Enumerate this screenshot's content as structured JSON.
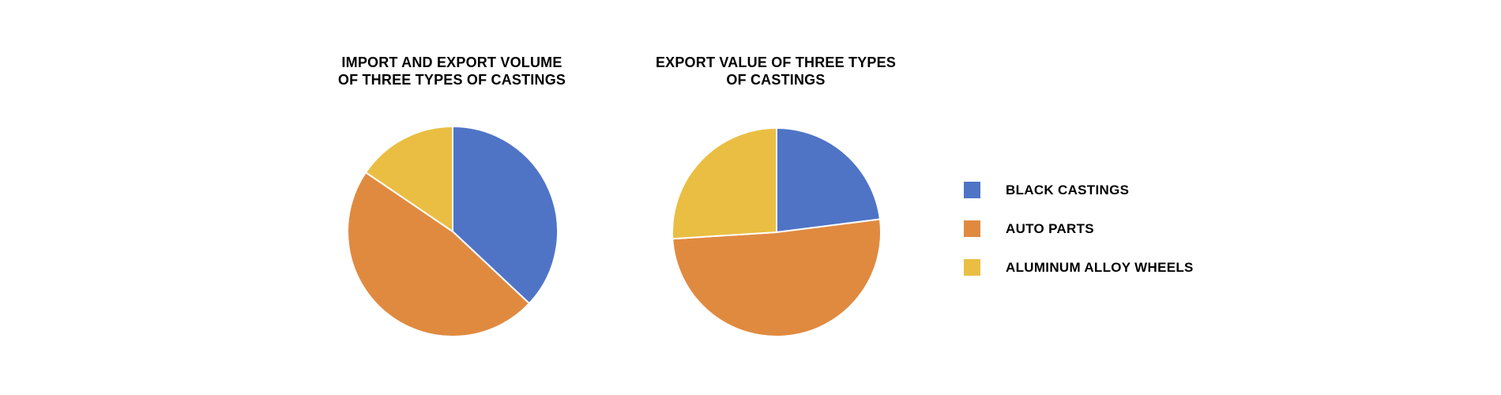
{
  "chart_data": [
    {
      "type": "pie",
      "title": "IMPORT AND EXPORT VOLUME\nOF THREE TYPES OF CASTINGS",
      "categories": [
        "BLACK CASTINGS",
        "AUTO PARTS",
        "ALUMINUM ALLOY WHEELS"
      ],
      "values": [
        37,
        47.5,
        15.5
      ],
      "colors": [
        "#4f74c6",
        "#e08a40",
        "#e9be42"
      ],
      "start_angle": "12 o'clock, clockwise",
      "legend_position": "right"
    },
    {
      "type": "pie",
      "title": "EXPORT VALUE OF THREE TYPES\nOF CASTINGS",
      "categories": [
        "BLACK CASTINGS",
        "AUTO PARTS",
        "ALUMINUM ALLOY WHEELS"
      ],
      "values": [
        23,
        51,
        26
      ],
      "colors": [
        "#4f74c6",
        "#e08a40",
        "#e9be42"
      ],
      "start_angle": "12 o'clock, clockwise",
      "legend_position": "right"
    }
  ],
  "charts": {
    "left": {
      "title": "IMPORT AND EXPORT VOLUME\nOF THREE TYPES OF CASTINGS"
    },
    "right": {
      "title": "EXPORT VALUE OF THREE TYPES\nOF CASTINGS"
    }
  },
  "legend": {
    "items": [
      {
        "label": "BLACK CASTINGS",
        "color": "#4f74c6"
      },
      {
        "label": "AUTO PARTS",
        "color": "#e08a40"
      },
      {
        "label": "ALUMINUM ALLOY WHEELS",
        "color": "#e9be42"
      }
    ]
  }
}
